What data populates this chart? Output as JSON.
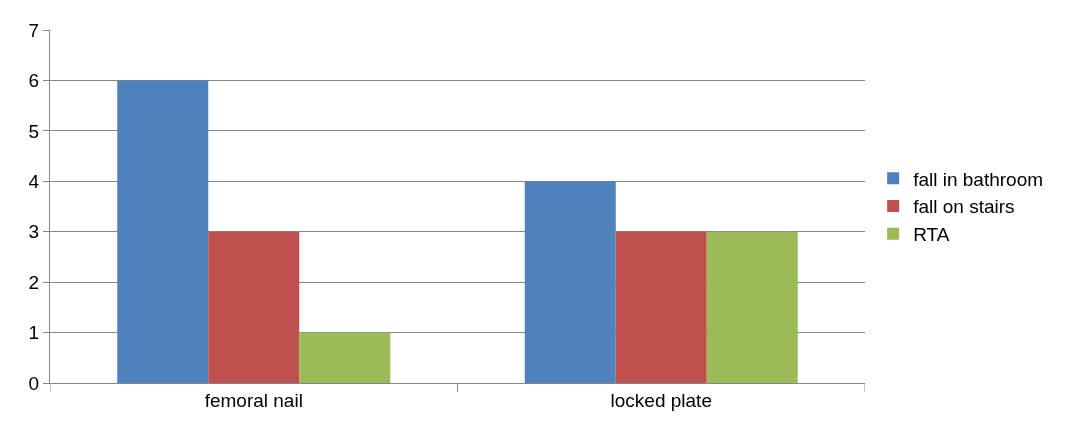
{
  "chart_data": {
    "type": "bar",
    "categories": [
      "femoral nail",
      "locked plate"
    ],
    "series": [
      {
        "name": "fall in bathroom",
        "color": "#4f81bd",
        "values": [
          6,
          4
        ]
      },
      {
        "name": "fall on stairs",
        "color": "#c0504d",
        "values": [
          3,
          3
        ]
      },
      {
        "name": "RTA",
        "color": "#9bbb59",
        "values": [
          1,
          3
        ]
      }
    ],
    "ylim": [
      0,
      7
    ],
    "yticks": [
      0,
      1,
      2,
      3,
      4,
      5,
      6,
      7
    ],
    "grid": "y",
    "legend": "right"
  }
}
